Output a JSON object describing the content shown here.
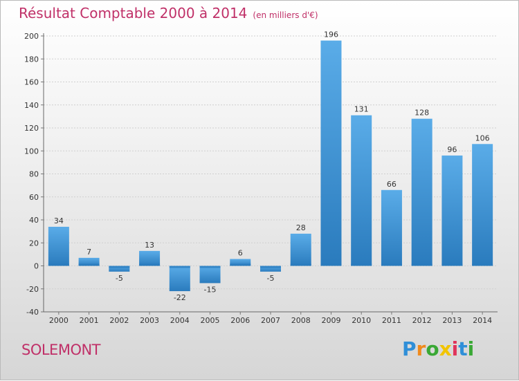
{
  "chart_data": {
    "type": "bar",
    "title": "Résultat Comptable 2000 à 2014",
    "subtitle": "(en milliers d'€)",
    "categories": [
      "2000",
      "2001",
      "2002",
      "2003",
      "2004",
      "2005",
      "2006",
      "2007",
      "2008",
      "2009",
      "2010",
      "2011",
      "2012",
      "2013",
      "2014"
    ],
    "values": [
      34,
      7,
      -5,
      13,
      -22,
      -15,
      6,
      -5,
      28,
      196,
      131,
      66,
      128,
      96,
      106
    ],
    "ylim": [
      -40,
      200
    ],
    "yticks": [
      -40,
      -20,
      0,
      20,
      40,
      60,
      80,
      100,
      120,
      140,
      160,
      180,
      200
    ],
    "grid": true,
    "xlabel": "",
    "ylabel": "",
    "bar_color_light": "#5aace8",
    "bar_color_dark": "#2a7bbd"
  },
  "location": "SOLEMONT",
  "brand": {
    "letters": [
      "P",
      "r",
      "o",
      "x",
      "i",
      "t",
      "i"
    ],
    "colors": [
      "#2f8fd8",
      "#f08a1c",
      "#3aa835",
      "#f2c400",
      "#e0345a",
      "#2f8fd8",
      "#3aa835"
    ]
  }
}
